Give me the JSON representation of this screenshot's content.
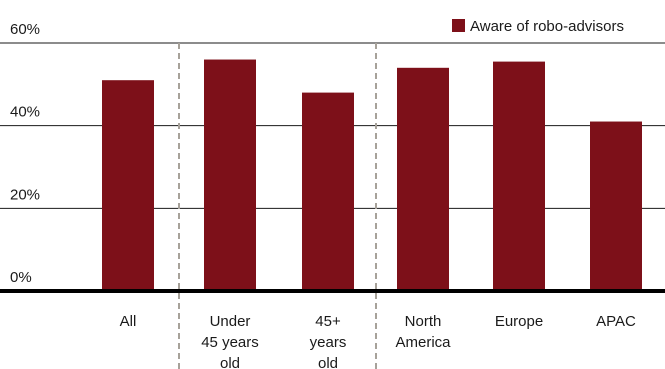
{
  "chart_data": {
    "type": "bar",
    "categories": [
      [
        "All"
      ],
      [
        "Under",
        "45 years",
        "old"
      ],
      [
        "45+",
        "years",
        "old"
      ],
      [
        "North",
        "America"
      ],
      [
        "Europe"
      ],
      [
        "APAC"
      ]
    ],
    "series": [
      {
        "name": "Aware of robo-advisors",
        "values": [
          51,
          56,
          48,
          54,
          55.5,
          41
        ],
        "color": "#7d1019"
      }
    ],
    "y_ticks": [
      "0%",
      "20%",
      "40%",
      "60%"
    ],
    "ylim": [
      0,
      60
    ],
    "grid": true,
    "legend_position": "top-right",
    "separators_after_category_index": [
      0,
      2
    ]
  }
}
